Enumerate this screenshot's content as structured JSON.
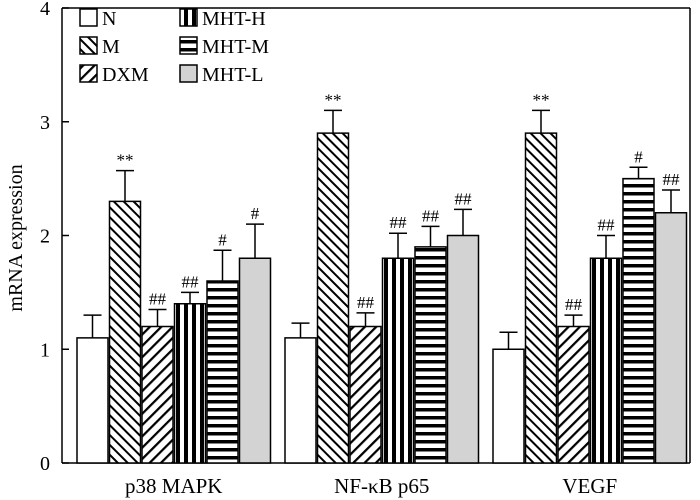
{
  "chart_data": {
    "type": "bar",
    "title": "",
    "xlabel": "",
    "ylabel": "mRNA expression",
    "ylim": [
      0,
      4
    ],
    "yticks": [
      0,
      1,
      2,
      3,
      4
    ],
    "grid": false,
    "legend_position": "top-left",
    "categories": [
      "p38 MAPK",
      "NF-κB p65",
      "VEGF"
    ],
    "series": [
      {
        "name": "N",
        "pattern": "none",
        "fill": "#ffffff",
        "values": [
          1.1,
          1.1,
          1.0
        ],
        "errors": [
          0.2,
          0.13,
          0.15
        ],
        "significance": [
          "",
          "",
          ""
        ]
      },
      {
        "name": "M",
        "pattern": "backslash",
        "fill": "#ffffff",
        "values": [
          2.3,
          2.9,
          2.9
        ],
        "errors": [
          0.27,
          0.2,
          0.2
        ],
        "significance": [
          "**",
          "**",
          "**"
        ]
      },
      {
        "name": "DXM",
        "pattern": "slash",
        "fill": "#ffffff",
        "values": [
          1.2,
          1.2,
          1.2
        ],
        "errors": [
          0.15,
          0.12,
          0.1
        ],
        "significance": [
          "##",
          "##",
          "##"
        ]
      },
      {
        "name": "MHT-H",
        "pattern": "vertical",
        "fill": "#ffffff",
        "values": [
          1.4,
          1.8,
          1.8
        ],
        "errors": [
          0.1,
          0.22,
          0.2
        ],
        "significance": [
          "##",
          "##",
          "##"
        ]
      },
      {
        "name": "MHT-M",
        "pattern": "horizontal",
        "fill": "#ffffff",
        "values": [
          1.6,
          1.9,
          2.5
        ],
        "errors": [
          0.27,
          0.18,
          0.1
        ],
        "significance": [
          "#",
          "##",
          "#"
        ]
      },
      {
        "name": "MHT-L",
        "pattern": "solid",
        "fill": "#d3d3d3",
        "values": [
          1.8,
          2.0,
          2.2
        ],
        "errors": [
          0.3,
          0.23,
          0.2
        ],
        "significance": [
          "#",
          "##",
          "##"
        ]
      }
    ]
  }
}
